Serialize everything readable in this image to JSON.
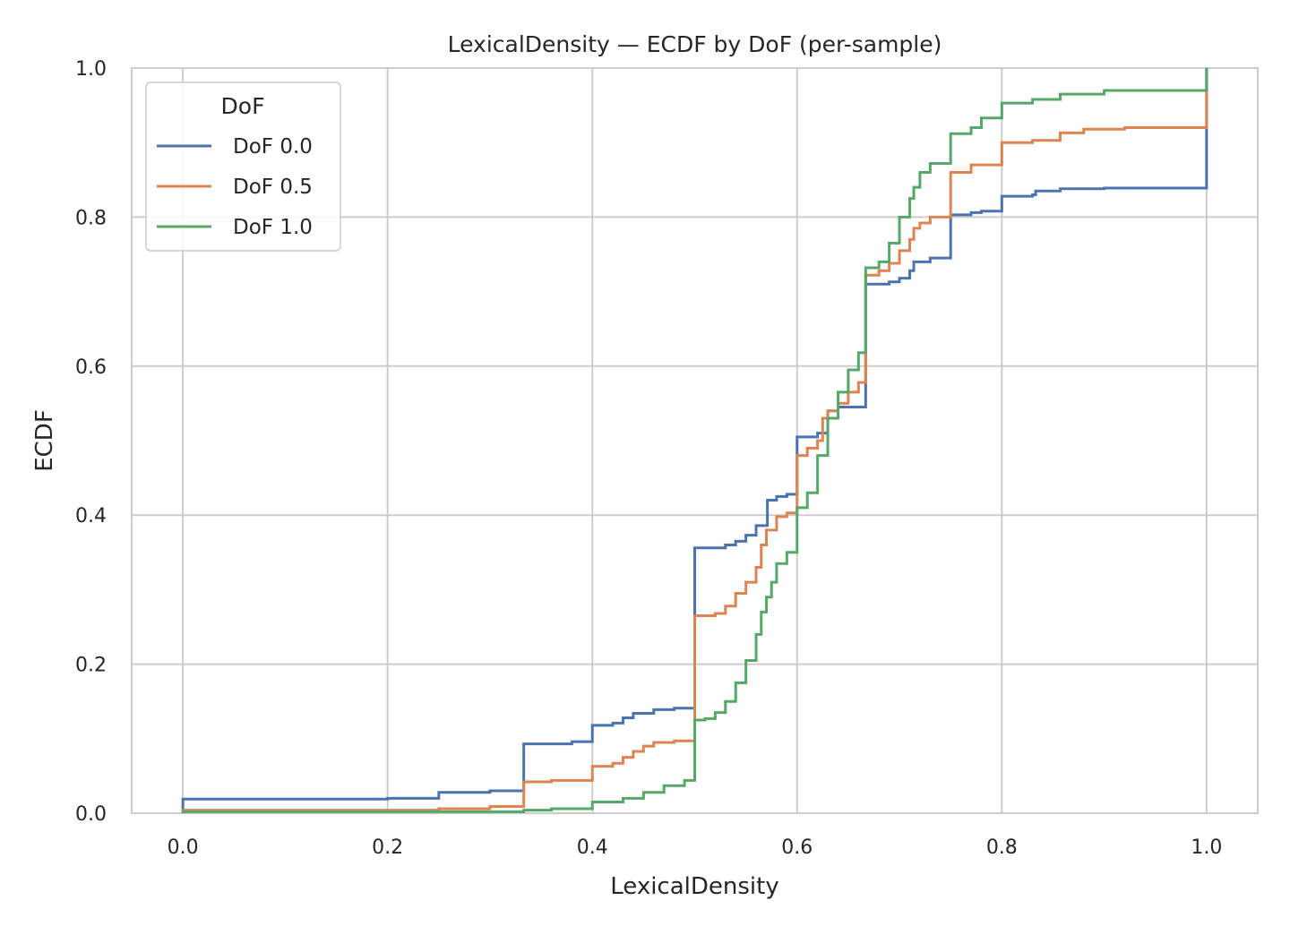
{
  "chart_data": {
    "type": "line",
    "subtype": "ecdf-step",
    "title": "LexicalDensity — ECDF by DoF (per-sample)",
    "xlabel": "LexicalDensity",
    "ylabel": "ECDF",
    "xlim": [
      -0.05,
      1.05
    ],
    "ylim": [
      0.0,
      1.0
    ],
    "x_ticks": [
      {
        "value": 0.0,
        "label": "0.0"
      },
      {
        "value": 0.2,
        "label": "0.2"
      },
      {
        "value": 0.4,
        "label": "0.4"
      },
      {
        "value": 0.6,
        "label": "0.6"
      },
      {
        "value": 0.8,
        "label": "0.8"
      },
      {
        "value": 1.0,
        "label": "1.0"
      }
    ],
    "y_ticks": [
      {
        "value": 0.0,
        "label": "0.0"
      },
      {
        "value": 0.2,
        "label": "0.2"
      },
      {
        "value": 0.4,
        "label": "0.4"
      },
      {
        "value": 0.6,
        "label": "0.6"
      },
      {
        "value": 0.8,
        "label": "0.8"
      },
      {
        "value": 1.0,
        "label": "1.0"
      }
    ],
    "grid": true,
    "legend": {
      "title": "DoF",
      "placement": "upper-left"
    },
    "series": [
      {
        "name": "DoF 0.0",
        "color": "#4c72b0",
        "points": [
          [
            0.0,
            0.0
          ],
          [
            0.0,
            0.019
          ],
          [
            0.2,
            0.02
          ],
          [
            0.25,
            0.028
          ],
          [
            0.3,
            0.03
          ],
          [
            0.333,
            0.033
          ],
          [
            0.333,
            0.093
          ],
          [
            0.38,
            0.096
          ],
          [
            0.4,
            0.118
          ],
          [
            0.42,
            0.121
          ],
          [
            0.43,
            0.128
          ],
          [
            0.44,
            0.134
          ],
          [
            0.46,
            0.139
          ],
          [
            0.48,
            0.141
          ],
          [
            0.5,
            0.141
          ],
          [
            0.5,
            0.356
          ],
          [
            0.53,
            0.36
          ],
          [
            0.54,
            0.365
          ],
          [
            0.55,
            0.373
          ],
          [
            0.56,
            0.386
          ],
          [
            0.571,
            0.42
          ],
          [
            0.58,
            0.425
          ],
          [
            0.59,
            0.428
          ],
          [
            0.6,
            0.428
          ],
          [
            0.6,
            0.505
          ],
          [
            0.62,
            0.51
          ],
          [
            0.63,
            0.54
          ],
          [
            0.64,
            0.545
          ],
          [
            0.667,
            0.548
          ],
          [
            0.667,
            0.71
          ],
          [
            0.69,
            0.713
          ],
          [
            0.7,
            0.718
          ],
          [
            0.71,
            0.728
          ],
          [
            0.714,
            0.74
          ],
          [
            0.73,
            0.745
          ],
          [
            0.75,
            0.745
          ],
          [
            0.75,
            0.803
          ],
          [
            0.77,
            0.806
          ],
          [
            0.78,
            0.808
          ],
          [
            0.8,
            0.809
          ],
          [
            0.8,
            0.828
          ],
          [
            0.83,
            0.83
          ],
          [
            0.833,
            0.835
          ],
          [
            0.857,
            0.838
          ],
          [
            0.9,
            0.839
          ],
          [
            1.0,
            0.839
          ],
          [
            1.0,
            1.0
          ]
        ]
      },
      {
        "name": "DoF 0.5",
        "color": "#dd8452",
        "points": [
          [
            0.0,
            0.0
          ],
          [
            0.0,
            0.004
          ],
          [
            0.25,
            0.006
          ],
          [
            0.3,
            0.009
          ],
          [
            0.333,
            0.011
          ],
          [
            0.333,
            0.042
          ],
          [
            0.36,
            0.044
          ],
          [
            0.4,
            0.046
          ],
          [
            0.4,
            0.063
          ],
          [
            0.42,
            0.067
          ],
          [
            0.43,
            0.075
          ],
          [
            0.44,
            0.083
          ],
          [
            0.45,
            0.09
          ],
          [
            0.46,
            0.095
          ],
          [
            0.48,
            0.097
          ],
          [
            0.5,
            0.097
          ],
          [
            0.5,
            0.265
          ],
          [
            0.52,
            0.268
          ],
          [
            0.53,
            0.278
          ],
          [
            0.54,
            0.295
          ],
          [
            0.55,
            0.31
          ],
          [
            0.56,
            0.33
          ],
          [
            0.565,
            0.36
          ],
          [
            0.57,
            0.38
          ],
          [
            0.58,
            0.398
          ],
          [
            0.59,
            0.403
          ],
          [
            0.6,
            0.403
          ],
          [
            0.6,
            0.48
          ],
          [
            0.61,
            0.49
          ],
          [
            0.62,
            0.5
          ],
          [
            0.625,
            0.53
          ],
          [
            0.63,
            0.54
          ],
          [
            0.64,
            0.55
          ],
          [
            0.65,
            0.565
          ],
          [
            0.66,
            0.578
          ],
          [
            0.667,
            0.578
          ],
          [
            0.667,
            0.722
          ],
          [
            0.68,
            0.728
          ],
          [
            0.69,
            0.738
          ],
          [
            0.7,
            0.755
          ],
          [
            0.71,
            0.77
          ],
          [
            0.714,
            0.785
          ],
          [
            0.72,
            0.792
          ],
          [
            0.73,
            0.8
          ],
          [
            0.75,
            0.8
          ],
          [
            0.75,
            0.86
          ],
          [
            0.77,
            0.87
          ],
          [
            0.8,
            0.871
          ],
          [
            0.8,
            0.9
          ],
          [
            0.83,
            0.903
          ],
          [
            0.857,
            0.913
          ],
          [
            0.88,
            0.918
          ],
          [
            0.92,
            0.92
          ],
          [
            1.0,
            0.92
          ],
          [
            1.0,
            1.0
          ]
        ]
      },
      {
        "name": "DoF 1.0",
        "color": "#55a868",
        "points": [
          [
            0.0,
            0.0
          ],
          [
            0.0,
            0.002
          ],
          [
            0.333,
            0.004
          ],
          [
            0.36,
            0.006
          ],
          [
            0.4,
            0.008
          ],
          [
            0.4,
            0.015
          ],
          [
            0.43,
            0.02
          ],
          [
            0.45,
            0.028
          ],
          [
            0.47,
            0.037
          ],
          [
            0.49,
            0.044
          ],
          [
            0.5,
            0.045
          ],
          [
            0.5,
            0.125
          ],
          [
            0.51,
            0.127
          ],
          [
            0.52,
            0.135
          ],
          [
            0.53,
            0.15
          ],
          [
            0.54,
            0.175
          ],
          [
            0.55,
            0.205
          ],
          [
            0.56,
            0.24
          ],
          [
            0.565,
            0.27
          ],
          [
            0.57,
            0.29
          ],
          [
            0.575,
            0.31
          ],
          [
            0.58,
            0.335
          ],
          [
            0.59,
            0.35
          ],
          [
            0.6,
            0.35
          ],
          [
            0.6,
            0.41
          ],
          [
            0.61,
            0.43
          ],
          [
            0.62,
            0.48
          ],
          [
            0.63,
            0.53
          ],
          [
            0.64,
            0.565
          ],
          [
            0.65,
            0.595
          ],
          [
            0.66,
            0.618
          ],
          [
            0.667,
            0.62
          ],
          [
            0.667,
            0.732
          ],
          [
            0.68,
            0.74
          ],
          [
            0.69,
            0.765
          ],
          [
            0.7,
            0.8
          ],
          [
            0.71,
            0.825
          ],
          [
            0.714,
            0.84
          ],
          [
            0.72,
            0.86
          ],
          [
            0.73,
            0.872
          ],
          [
            0.75,
            0.873
          ],
          [
            0.75,
            0.912
          ],
          [
            0.77,
            0.92
          ],
          [
            0.78,
            0.933
          ],
          [
            0.8,
            0.937
          ],
          [
            0.8,
            0.953
          ],
          [
            0.83,
            0.958
          ],
          [
            0.857,
            0.965
          ],
          [
            0.9,
            0.97
          ],
          [
            1.0,
            0.972
          ],
          [
            1.0,
            1.0
          ]
        ]
      }
    ]
  }
}
